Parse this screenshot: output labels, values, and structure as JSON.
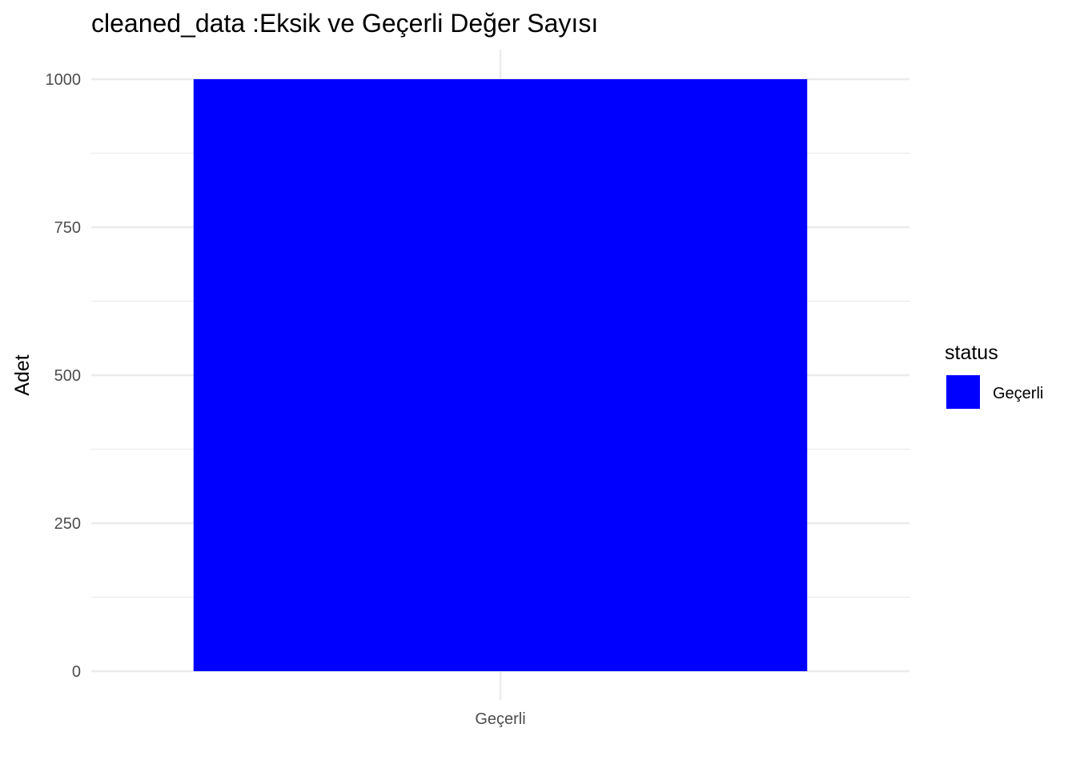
{
  "chart_data": {
    "type": "bar",
    "title": "cleaned_data :Eksik ve Geçerli Değer Sayısı",
    "xlabel": "",
    "ylabel": "Adet",
    "categories": [
      "Geçerli"
    ],
    "series": [
      {
        "name": "Geçerli",
        "values": [
          1000
        ],
        "color": "#0000FF"
      }
    ],
    "ylim": [
      0,
      1000
    ],
    "yticks": [
      0,
      250,
      500,
      750,
      1000
    ],
    "ytick_labels": [
      "0",
      "250",
      "500",
      "750",
      "1000"
    ],
    "grid": true,
    "legend": {
      "title": "status",
      "position": "right",
      "entries": [
        {
          "label": "Geçerli",
          "color": "#0000FF"
        }
      ]
    }
  }
}
